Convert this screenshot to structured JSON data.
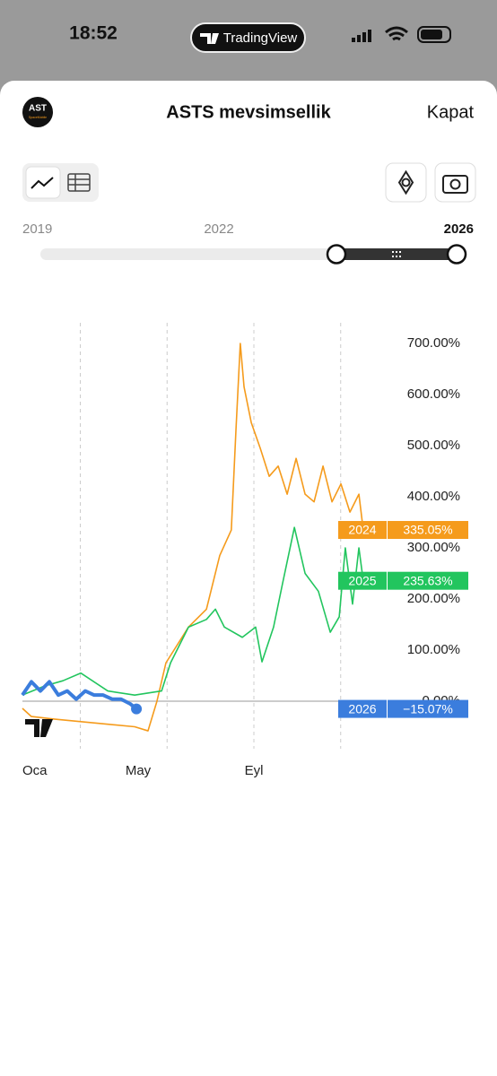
{
  "status_bar": {
    "time": "18:52",
    "app": "TradingView"
  },
  "header": {
    "logo": "AST",
    "logo_sub": "SpaceMobile",
    "title": "ASTS mevsimsellik",
    "close": "Kapat"
  },
  "range": {
    "labels": [
      "2019",
      "2022",
      "2026"
    ]
  },
  "chart_data": {
    "type": "line",
    "xlim": [
      0,
      12
    ],
    "xticks": [
      {
        "value": 0,
        "label": "Oca"
      },
      {
        "value": 4,
        "label": "May"
      },
      {
        "value": 8,
        "label": "Eyl"
      }
    ],
    "xgrid": [
      2,
      5,
      8,
      11
    ],
    "ylim": [
      -90,
      770
    ],
    "yticks": [
      {
        "value": 0,
        "label": "0.00%"
      },
      {
        "value": 100,
        "label": "100.00%"
      },
      {
        "value": 200,
        "label": "200.00%"
      },
      {
        "value": 300,
        "label": "300.00%"
      },
      {
        "value": 400,
        "label": "400.00%"
      },
      {
        "value": 500,
        "label": "500.00%"
      },
      {
        "value": 600,
        "label": "600.00%"
      },
      {
        "value": 700,
        "label": "700.00%"
      }
    ],
    "series": [
      {
        "name": "2024",
        "color": "#f59b1c",
        "x": [
          0,
          0.31,
          1.09,
          2.02,
          2.95,
          3.88,
          4.34,
          4.65,
          4.96,
          5.74,
          6.36,
          6.82,
          7.22,
          7.38,
          7.53,
          7.66,
          7.91,
          8.22,
          8.53,
          8.84,
          9.15,
          9.46,
          9.77,
          10.08,
          10.39,
          10.7,
          11.01,
          11.32,
          11.63,
          11.78
        ],
        "values": [
          -14,
          -30,
          -35,
          -40,
          -45,
          -50,
          -58,
          0,
          75,
          145,
          180,
          285,
          335,
          530,
          700,
          615,
          545,
          495,
          440,
          460,
          405,
          475,
          405,
          390,
          460,
          390,
          425,
          370,
          405,
          335.05
        ],
        "value_labels": [
          null,
          null,
          null,
          null,
          null,
          null,
          null,
          null,
          null,
          null,
          null,
          null,
          null,
          null,
          null,
          null,
          null,
          null,
          null,
          null,
          null,
          null,
          null,
          null,
          null,
          null,
          null,
          null,
          null,
          "335.05%"
        ]
      },
      {
        "name": "2025",
        "color": "#22c55e",
        "x": [
          0,
          0.78,
          1.4,
          2.02,
          2.95,
          3.88,
          4.81,
          5.12,
          5.74,
          6.36,
          6.67,
          6.98,
          7.6,
          8.06,
          8.28,
          8.68,
          8.99,
          9.4,
          9.77,
          10.23,
          10.64,
          10.95,
          11.16,
          11.41,
          11.63,
          11.78
        ],
        "values": [
          12,
          30,
          40,
          55,
          20,
          12,
          20,
          75,
          145,
          160,
          180,
          145,
          125,
          145,
          77,
          145,
          230,
          340,
          250,
          215,
          135,
          165,
          300,
          190,
          300,
          235.63
        ],
        "value_labels": [
          null,
          null,
          null,
          null,
          null,
          null,
          null,
          null,
          null,
          null,
          null,
          null,
          null,
          null,
          null,
          null,
          null,
          null,
          null,
          null,
          null,
          null,
          null,
          null,
          null,
          "235.63%"
        ]
      },
      {
        "name": "2026",
        "color": "#3b7ddd",
        "x": [
          0,
          0.31,
          0.62,
          0.93,
          1.24,
          1.55,
          1.86,
          2.17,
          2.48,
          2.79,
          3.1,
          3.41,
          3.72,
          3.94
        ],
        "values": [
          12,
          38,
          20,
          38,
          12,
          20,
          4,
          20,
          12,
          12,
          4,
          4,
          -5,
          -15.07
        ],
        "value_labels": [
          null,
          null,
          null,
          null,
          null,
          null,
          null,
          null,
          null,
          null,
          null,
          null,
          null,
          "−15.07%"
        ]
      }
    ]
  }
}
